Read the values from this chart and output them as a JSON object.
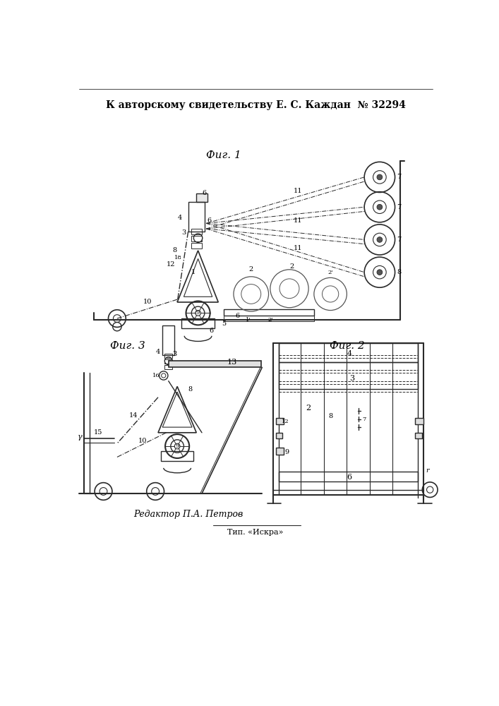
{
  "title_line": "К авторскому свидетельству Е. С. Каждан  № 32294",
  "fig1_label": "Фиг. 1",
  "fig2_label": "Фиг. 2",
  "fig3_label": "Фиг. 3",
  "editor_line": "Редактор П.А. Петров",
  "tip_line": "Тип. «Искра»",
  "bg_color": "#ffffff",
  "line_color": "#2a2a2a",
  "text_color": "#000000"
}
